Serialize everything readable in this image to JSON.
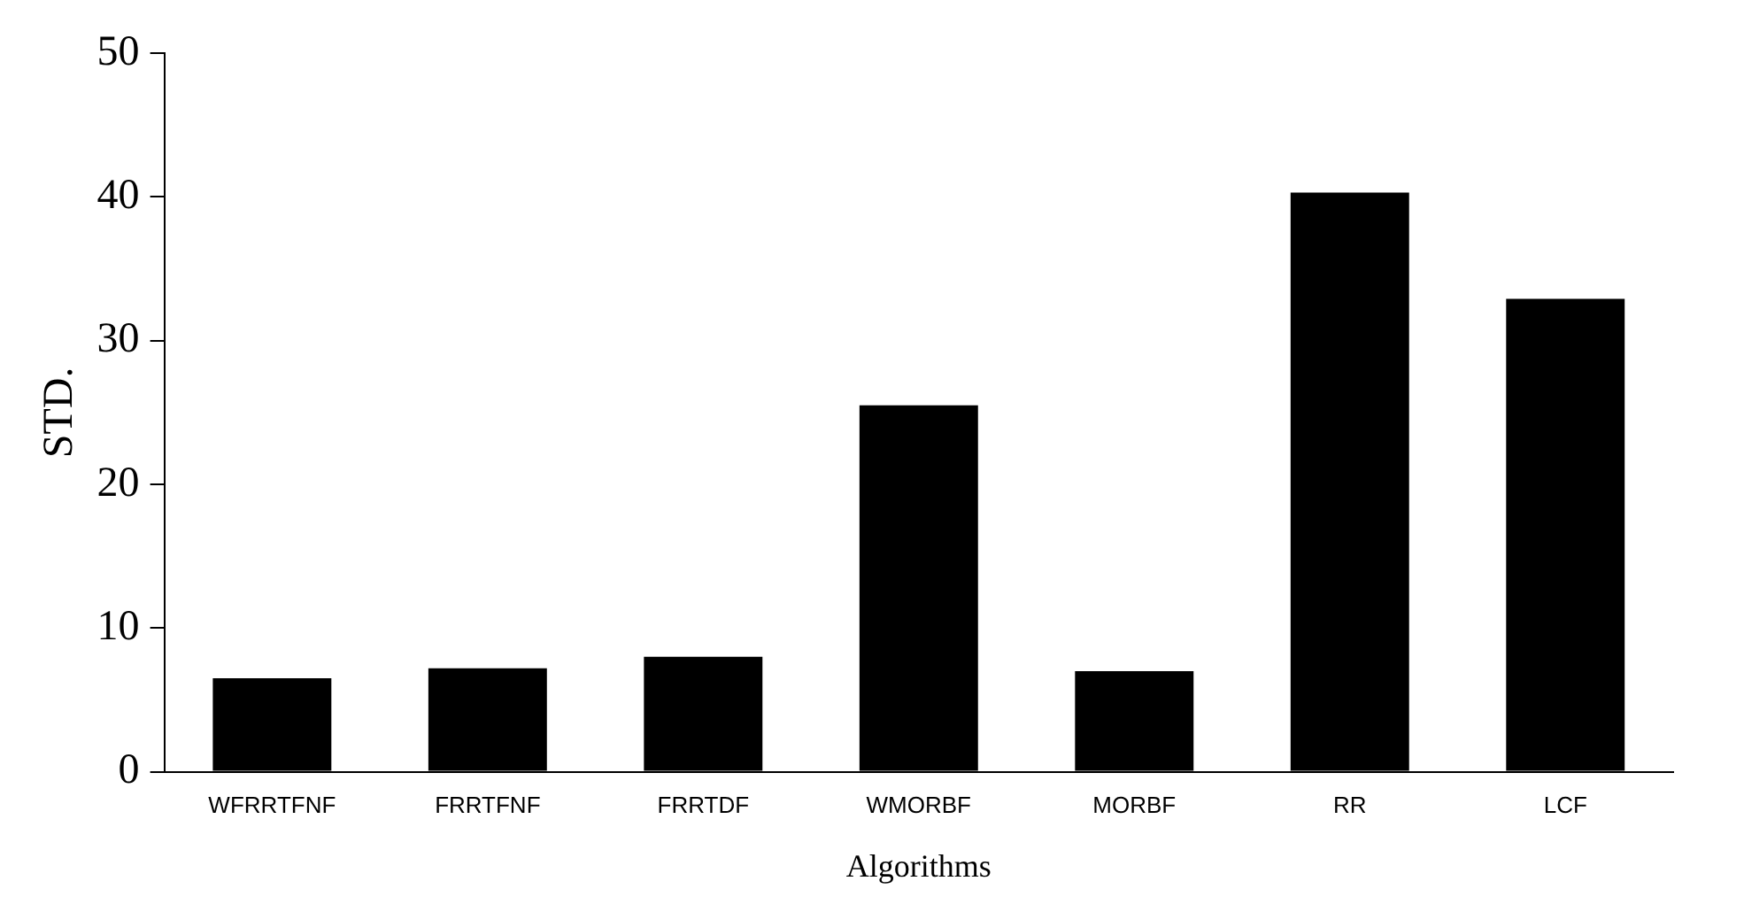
{
  "chart_data": {
    "type": "bar",
    "xlabel": "Algorithms",
    "ylabel": "STD.",
    "categories": [
      "WFRRTFNF",
      "FRRTFNF",
      "FRRTDF",
      "WMORBF",
      "MORBF",
      "RR",
      "LCF"
    ],
    "values": [
      6.5,
      7.2,
      8.0,
      25.5,
      7.0,
      40.3,
      32.9
    ],
    "color": "#000000",
    "ylim": [
      0,
      50
    ],
    "yticks": [
      0,
      10,
      20,
      30,
      40,
      50
    ],
    "grid": false,
    "legend": false
  }
}
